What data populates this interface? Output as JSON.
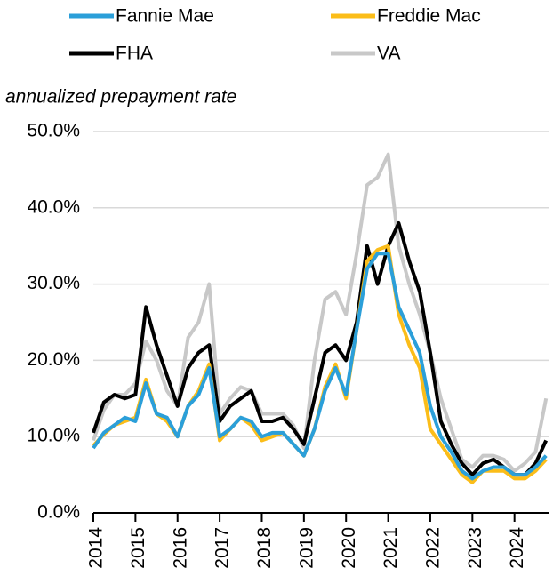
{
  "chart_data": {
    "type": "line",
    "subtitle": "annualized prepayment rate",
    "x": [
      2014,
      2014.25,
      2014.5,
      2014.75,
      2015,
      2015.25,
      2015.5,
      2015.75,
      2016,
      2016.25,
      2016.5,
      2016.75,
      2017,
      2017.25,
      2017.5,
      2017.75,
      2018,
      2018.25,
      2018.5,
      2018.75,
      2019,
      2019.25,
      2019.5,
      2019.75,
      2020,
      2020.25,
      2020.5,
      2020.75,
      2021,
      2021.25,
      2021.5,
      2021.75,
      2022,
      2022.25,
      2022.5,
      2022.75,
      2023,
      2023.25,
      2023.5,
      2023.75,
      2024,
      2024.25,
      2024.5,
      2024.75
    ],
    "series": [
      {
        "name": "Fannie Mae",
        "color": "#2b9fd9",
        "values": [
          8.5,
          10.5,
          11.5,
          12.5,
          12,
          17,
          13,
          12.5,
          10,
          14,
          15.5,
          19,
          10,
          11,
          12.5,
          12,
          10,
          10.5,
          10.5,
          9,
          7.5,
          11,
          16,
          19,
          15.5,
          24,
          32,
          34,
          34,
          27,
          24,
          21,
          14,
          10,
          8,
          5.5,
          4.5,
          5.5,
          6,
          6,
          5,
          5,
          6,
          7.5
        ]
      },
      {
        "name": "Freddie Mac",
        "color": "#fbbd19",
        "values": [
          8.8,
          10.3,
          11.5,
          12,
          12.5,
          17.5,
          13,
          12,
          10,
          14,
          16,
          19.5,
          9.5,
          11,
          12.5,
          11.5,
          9.5,
          10,
          10.5,
          9,
          7.5,
          11,
          16.5,
          19.5,
          15,
          24,
          33,
          34.5,
          35,
          26,
          22,
          19,
          11,
          9,
          7,
          5,
          4,
          5.5,
          5.5,
          5.5,
          4.5,
          4.5,
          5.5,
          7
        ]
      },
      {
        "name": "FHA",
        "color": "#000000",
        "values": [
          10.5,
          14.5,
          15.5,
          15,
          15.5,
          27,
          22,
          18,
          14,
          19,
          21,
          22,
          12,
          14,
          15,
          16,
          12,
          12,
          12.5,
          11,
          9,
          15,
          21,
          22,
          20,
          25,
          35,
          30,
          35,
          38,
          33,
          29,
          21,
          12,
          9,
          6.5,
          5,
          6.5,
          7,
          6,
          5,
          5,
          6.5,
          9.5
        ]
      },
      {
        "name": "VA",
        "color": "#c8c8c8",
        "values": [
          9.5,
          13.5,
          15.5,
          15.5,
          17,
          22.5,
          20,
          16,
          14,
          23,
          25,
          30,
          13,
          15,
          16.5,
          16,
          13,
          13,
          13,
          11.5,
          8.5,
          20,
          28,
          29,
          26,
          34,
          43,
          44,
          47,
          35,
          30,
          26,
          21,
          15,
          11,
          7,
          6,
          7.5,
          7.5,
          7,
          5.5,
          6.5,
          8,
          15
        ]
      }
    ],
    "xlim": [
      2014,
      2024.83
    ],
    "xticks": [
      2014,
      2015,
      2016,
      2017,
      2018,
      2019,
      2020,
      2021,
      2022,
      2023,
      2024
    ],
    "ylim": [
      0,
      50
    ],
    "yticks": [
      {
        "value": 0,
        "label": "0.0%"
      },
      {
        "value": 10,
        "label": "10.0%"
      },
      {
        "value": 20,
        "label": "20.0%"
      },
      {
        "value": 30,
        "label": "30.0%"
      },
      {
        "value": 40,
        "label": "40.0%"
      },
      {
        "value": 50,
        "label": "50.0%"
      }
    ],
    "grid": true
  }
}
